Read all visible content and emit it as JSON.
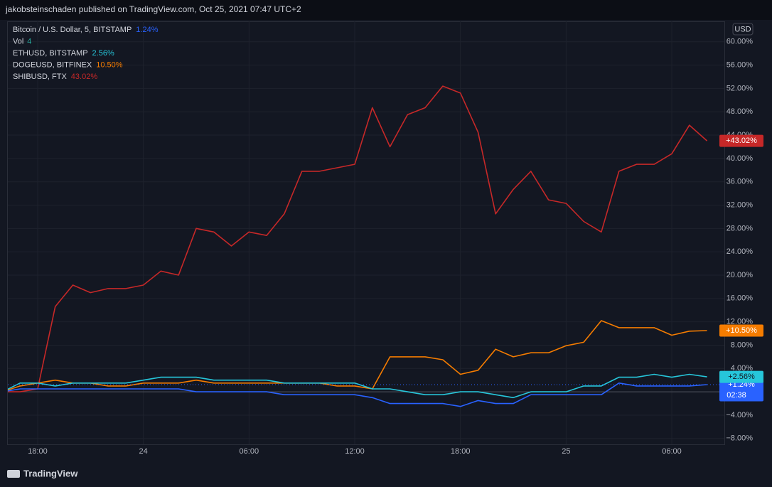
{
  "header": "jakobsteinschaden published on TradingView.com, Oct 25, 2021 07:47 UTC+2",
  "footer": "TradingView",
  "chart_data": {
    "type": "line",
    "currency": "USD",
    "volume_label": "Vol",
    "volume_value": 4,
    "countdown": "02:38",
    "categories": [
      null,
      null,
      "18:00",
      null,
      null,
      null,
      null,
      null,
      "24",
      null,
      null,
      null,
      null,
      null,
      "06:00",
      null,
      null,
      null,
      null,
      null,
      "12:00",
      null,
      null,
      null,
      null,
      null,
      "18:00",
      null,
      null,
      null,
      null,
      null,
      "25",
      null,
      null,
      null,
      null,
      null,
      "06:00",
      null,
      null
    ],
    "ylim": [
      -9,
      63.5
    ],
    "yticks": [
      {
        "value": -8,
        "label": "−8.00%"
      },
      {
        "value": -4,
        "label": "−4.00%"
      },
      {
        "value": 0,
        "label": "0.00%"
      },
      {
        "value": 4,
        "label": "4.00%"
      },
      {
        "value": 8,
        "label": "8.00%"
      },
      {
        "value": 12,
        "label": "12.00%"
      },
      {
        "value": 16,
        "label": "16.00%"
      },
      {
        "value": 20,
        "label": "20.00%"
      },
      {
        "value": 24,
        "label": "24.00%"
      },
      {
        "value": 28,
        "label": "28.00%"
      },
      {
        "value": 32,
        "label": "32.00%"
      },
      {
        "value": 36,
        "label": "36.00%"
      },
      {
        "value": 40,
        "label": "40.00%"
      },
      {
        "value": 44,
        "label": "44.00%"
      },
      {
        "value": 48,
        "label": "48.00%"
      },
      {
        "value": 52,
        "label": "52.00%"
      },
      {
        "value": 56,
        "label": "56.00%"
      },
      {
        "value": 60,
        "label": "60.00%"
      }
    ],
    "grid": true,
    "series": [
      {
        "name": "Bitcoin / U.S. Dollar, 5, BITSTAMP",
        "color": "#2962ff",
        "change": "1.24%",
        "tag": "+1.24%",
        "values": [
          0,
          0.5,
          0.5,
          0.5,
          0.5,
          0.5,
          0.5,
          0.5,
          0.5,
          0.5,
          0.5,
          0,
          0,
          0,
          0,
          0,
          -0.5,
          -0.5,
          -0.5,
          -0.5,
          -0.5,
          -1,
          -2,
          -2,
          -2,
          -2,
          -2.5,
          -1.5,
          -2,
          -2,
          -0.5,
          -0.5,
          -0.5,
          -0.5,
          -0.5,
          1.5,
          1,
          1,
          1,
          1,
          1.24
        ]
      },
      {
        "name": "ETHUSD, BITSTAMP",
        "color": "#26c6da",
        "change": "2.56%",
        "tag": "+2.56%",
        "values": [
          0,
          1.5,
          1.5,
          1,
          1.5,
          1.5,
          1.5,
          1.5,
          2,
          2.5,
          2.5,
          2.5,
          2,
          2,
          2,
          2,
          1.5,
          1.5,
          1.5,
          1.5,
          1.5,
          0.5,
          0.5,
          0,
          -0.5,
          -0.5,
          0,
          0,
          -0.5,
          -1,
          0,
          0,
          0,
          1,
          1,
          2.5,
          2.5,
          3,
          2.5,
          3,
          2.56
        ]
      },
      {
        "name": "DOGEUSD, BITFINEX",
        "color": "#f57c00",
        "change": "10.50%",
        "tag": "+10.50%",
        "values": [
          0,
          1,
          1.5,
          2,
          1.5,
          1.5,
          1,
          1,
          1.5,
          1.5,
          1.5,
          2,
          1.5,
          1.5,
          1.5,
          1.5,
          1.5,
          1.5,
          1.5,
          1,
          1,
          0.5,
          6,
          6,
          6,
          5.5,
          3,
          3.7,
          7.3,
          6,
          6.7,
          6.7,
          7.9,
          8.5,
          12.2,
          11,
          11,
          11,
          9.7,
          10.4,
          10.5
        ]
      },
      {
        "name": "SHIBUSD, FTX",
        "color": "#c62828",
        "change": "43.02%",
        "tag": "+43.02%",
        "values": [
          0,
          0,
          0.5,
          14.6,
          18.3,
          17,
          17.7,
          17.7,
          18.3,
          20.7,
          20,
          28,
          27.4,
          25,
          27.4,
          26.8,
          30.5,
          37.8,
          37.8,
          38.4,
          39,
          48.7,
          42,
          47.5,
          48.7,
          52.4,
          51.2,
          44.5,
          30.5,
          34.7,
          37.8,
          32.9,
          32.3,
          29.2,
          27.4,
          37.8,
          39,
          39,
          40.8,
          45.7,
          43.02
        ]
      }
    ]
  }
}
